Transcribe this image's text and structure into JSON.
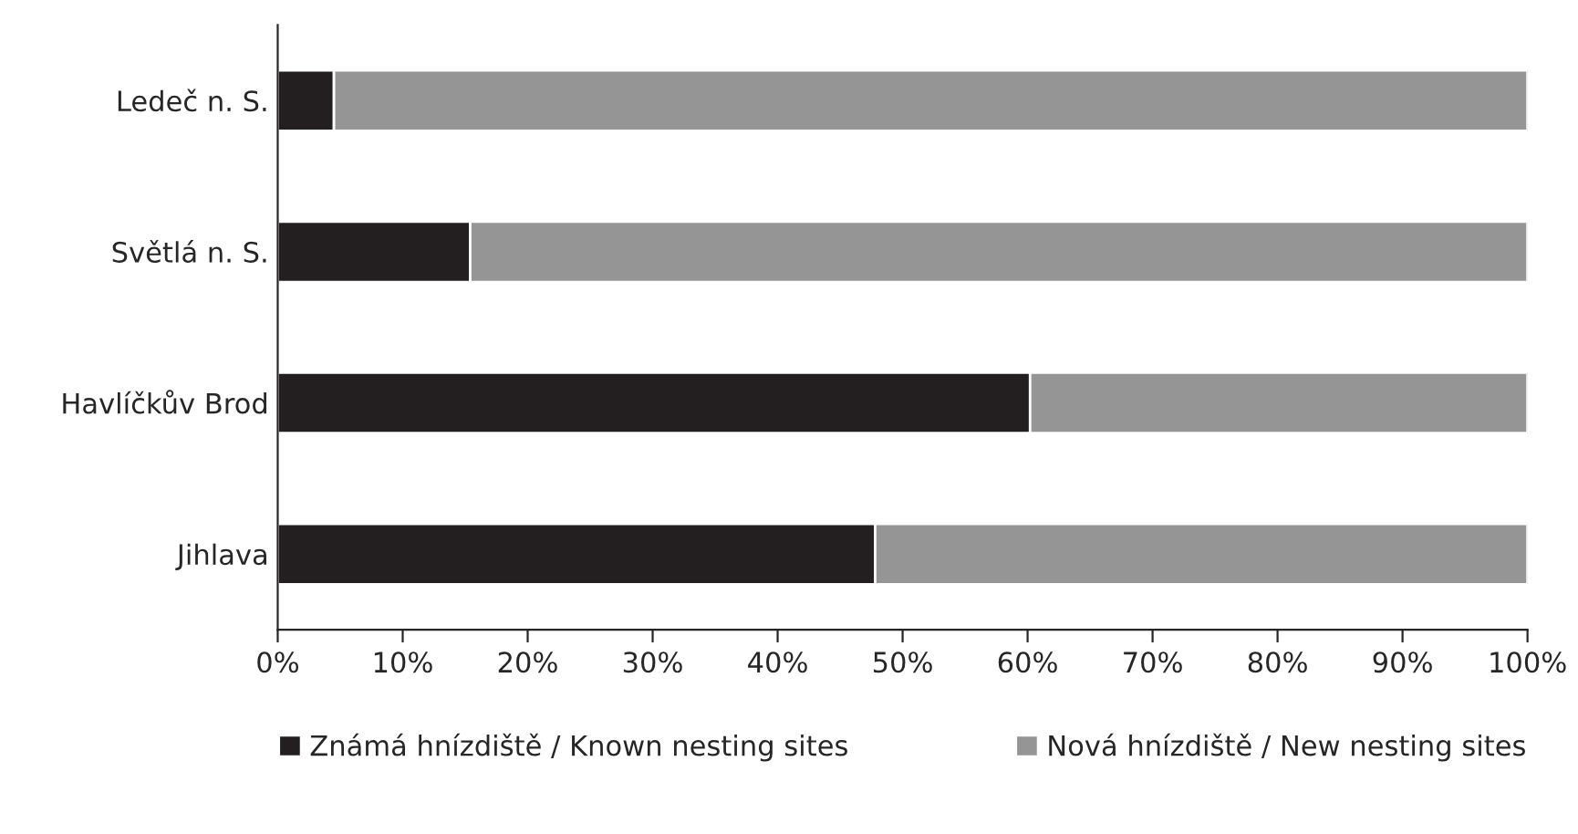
{
  "chart_data": {
    "type": "bar",
    "orientation": "horizontal",
    "stacked": true,
    "categories": [
      "Ledeč n. S.",
      "Světlá n. S.",
      "Havlíčkův Brod",
      "Jihlava"
    ],
    "series": [
      {
        "name": "Známá hnízdiště / Known nesting sites",
        "color": "#231f20",
        "values": [
          4.5,
          15.4,
          60.2,
          47.8
        ]
      },
      {
        "name": "Nová hnízdiště / New nesting sites",
        "color": "#959595",
        "values": [
          95.5,
          84.6,
          39.8,
          52.2
        ]
      }
    ],
    "xlim": [
      0,
      100
    ],
    "xticks": [
      {
        "value": 0,
        "label": "0%"
      },
      {
        "value": 10,
        "label": "10%"
      },
      {
        "value": 20,
        "label": "20%"
      },
      {
        "value": 30,
        "label": "30%"
      },
      {
        "value": 40,
        "label": "40%"
      },
      {
        "value": 50,
        "label": "50%"
      },
      {
        "value": 60,
        "label": "60%"
      },
      {
        "value": 70,
        "label": "70%"
      },
      {
        "value": 80,
        "label": "80%"
      },
      {
        "value": 90,
        "label": "90%"
      },
      {
        "value": 100,
        "label": "100%"
      }
    ],
    "grid": false,
    "legend": "bottom"
  }
}
